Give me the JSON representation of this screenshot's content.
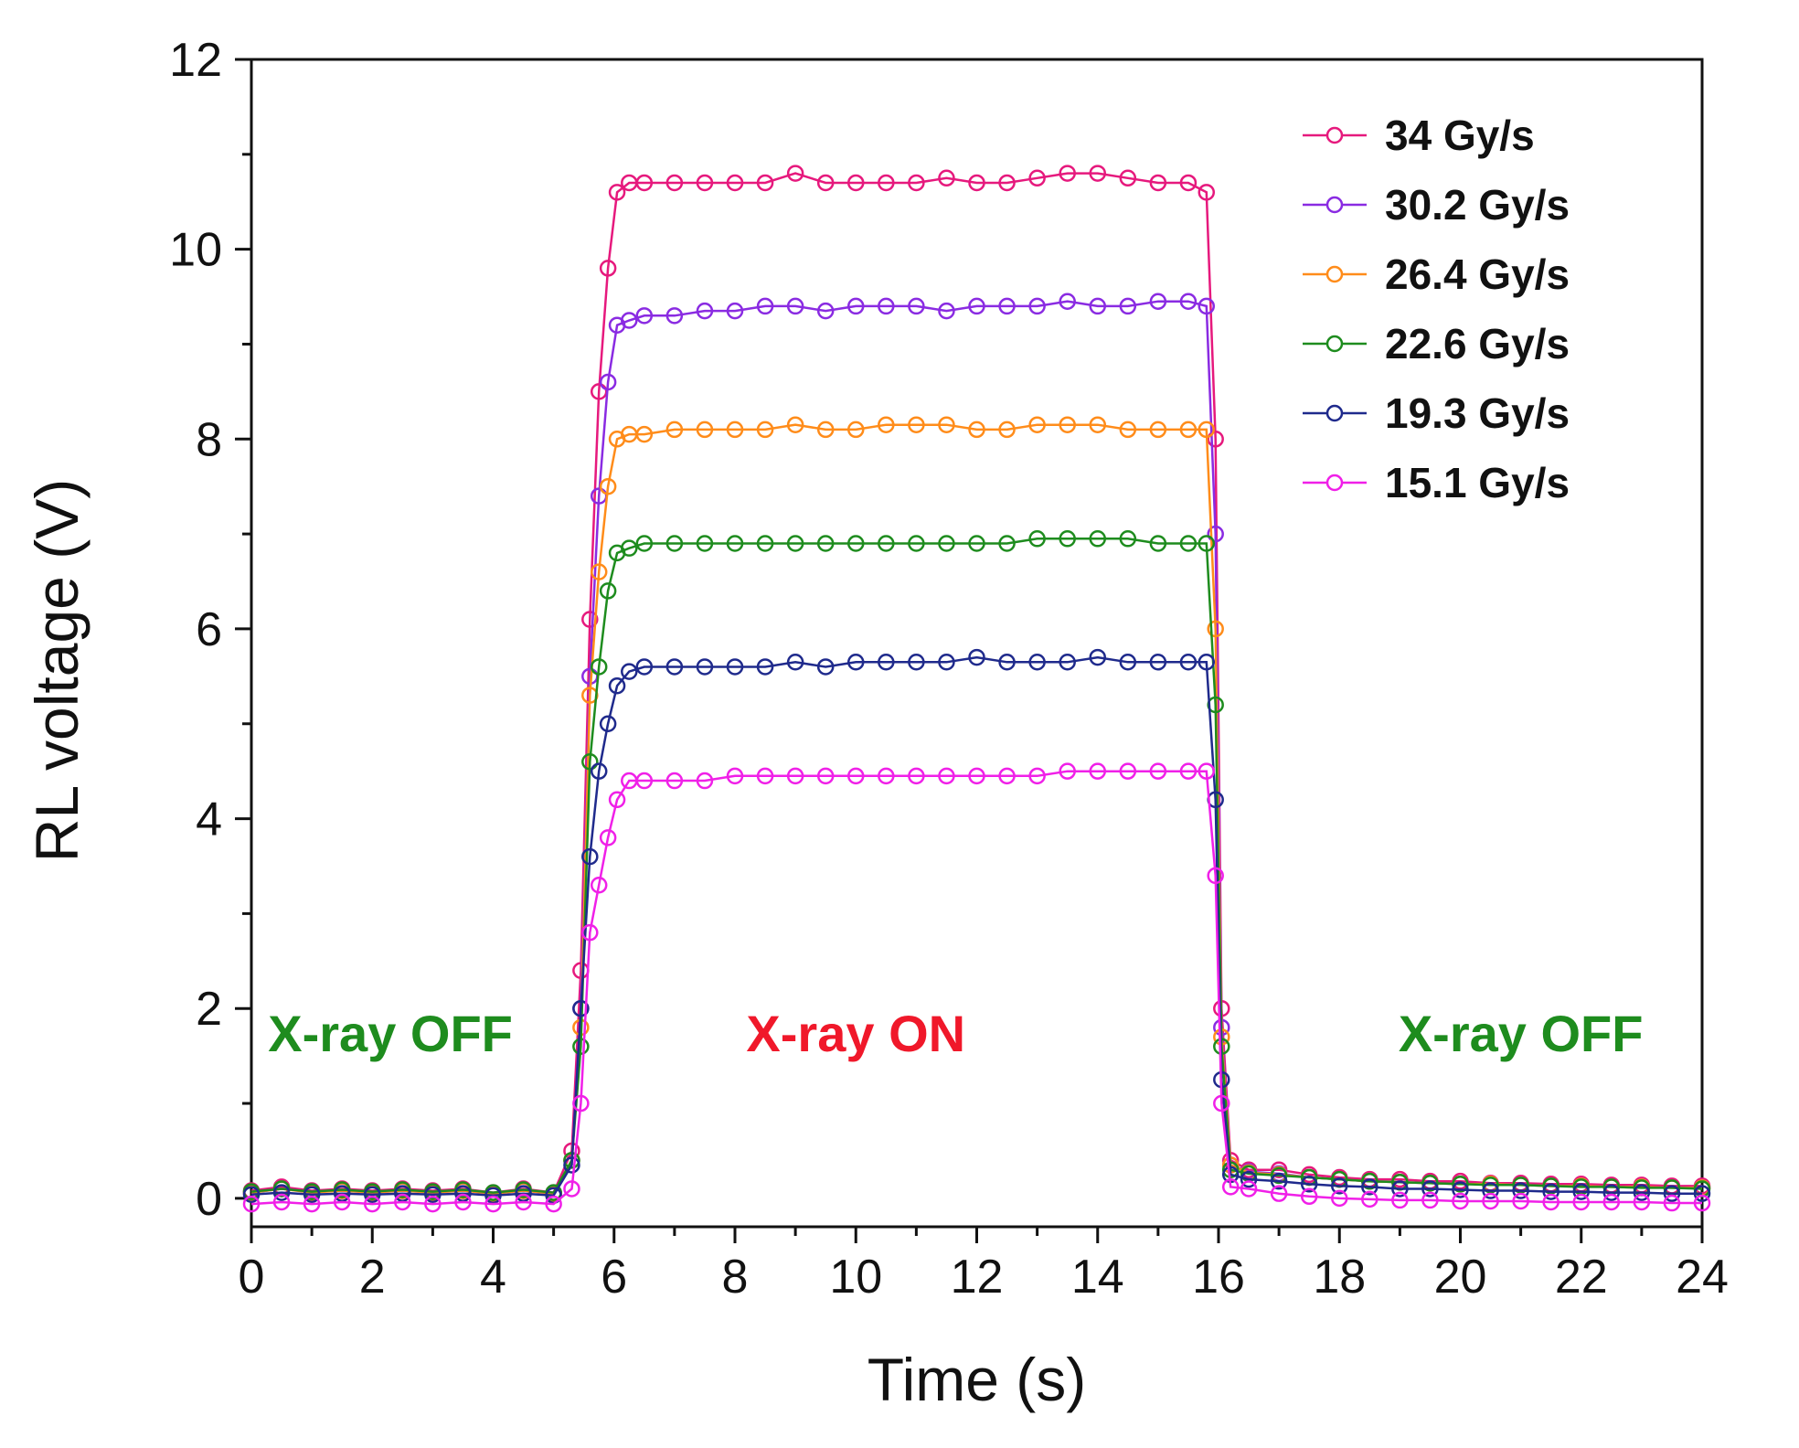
{
  "chart_data": {
    "type": "line",
    "xlabel": "Time (s)",
    "ylabel": "RL voltage (V)",
    "xlim": [
      0,
      24
    ],
    "ylim": [
      -0.3,
      12
    ],
    "xticks": [
      0,
      2,
      4,
      6,
      8,
      10,
      12,
      14,
      16,
      18,
      20,
      22,
      24
    ],
    "yticks": [
      0,
      2,
      4,
      6,
      8,
      10,
      12
    ],
    "marker": "open-circle",
    "legend_position": "top-right",
    "x": [
      0,
      0.5,
      1,
      1.5,
      2,
      2.5,
      3,
      3.5,
      4,
      4.5,
      5,
      5.3,
      5.45,
      5.6,
      5.75,
      5.9,
      6.05,
      6.25,
      6.5,
      7,
      7.5,
      8,
      8.5,
      9,
      9.5,
      10,
      10.5,
      11,
      11.5,
      12,
      12.5,
      13,
      13.5,
      14,
      14.5,
      15,
      15.5,
      15.8,
      15.95,
      16.05,
      16.2,
      16.5,
      17,
      17.5,
      18,
      18.5,
      19,
      19.5,
      20,
      20.5,
      21,
      21.5,
      22,
      22.5,
      23,
      23.5,
      24
    ],
    "series": [
      {
        "name": "34 Gy/s",
        "color": "#e6197d",
        "values": [
          0.08,
          0.12,
          0.08,
          0.1,
          0.08,
          0.1,
          0.08,
          0.1,
          0.06,
          0.1,
          0.06,
          0.5,
          2.4,
          6.1,
          8.5,
          9.8,
          10.6,
          10.7,
          10.7,
          10.7,
          10.7,
          10.7,
          10.7,
          10.8,
          10.7,
          10.7,
          10.7,
          10.7,
          10.75,
          10.7,
          10.7,
          10.75,
          10.8,
          10.8,
          10.75,
          10.7,
          10.7,
          10.6,
          8.0,
          2.0,
          0.4,
          0.3,
          0.3,
          0.25,
          0.22,
          0.2,
          0.2,
          0.18,
          0.18,
          0.16,
          0.16,
          0.15,
          0.15,
          0.14,
          0.14,
          0.13,
          0.13
        ]
      },
      {
        "name": "30.2 Gy/s",
        "color": "#8a2be2",
        "values": [
          0.06,
          0.1,
          0.07,
          0.08,
          0.06,
          0.08,
          0.06,
          0.08,
          0.05,
          0.08,
          0.05,
          0.4,
          2.0,
          5.5,
          7.4,
          8.6,
          9.2,
          9.25,
          9.3,
          9.3,
          9.35,
          9.35,
          9.4,
          9.4,
          9.35,
          9.4,
          9.4,
          9.4,
          9.35,
          9.4,
          9.4,
          9.4,
          9.45,
          9.4,
          9.4,
          9.45,
          9.45,
          9.4,
          7.0,
          1.8,
          0.35,
          0.28,
          0.26,
          0.22,
          0.2,
          0.18,
          0.17,
          0.16,
          0.15,
          0.15,
          0.14,
          0.13,
          0.13,
          0.12,
          0.12,
          0.11,
          0.11
        ]
      },
      {
        "name": "26.4 Gy/s",
        "color": "#ff8c1a",
        "values": [
          0.06,
          0.1,
          0.06,
          0.08,
          0.06,
          0.08,
          0.06,
          0.08,
          0.05,
          0.08,
          0.05,
          0.4,
          1.8,
          5.3,
          6.6,
          7.5,
          8.0,
          8.05,
          8.05,
          8.1,
          8.1,
          8.1,
          8.1,
          8.15,
          8.1,
          8.1,
          8.15,
          8.15,
          8.15,
          8.1,
          8.1,
          8.15,
          8.15,
          8.15,
          8.1,
          8.1,
          8.1,
          8.1,
          6.0,
          1.7,
          0.35,
          0.27,
          0.25,
          0.22,
          0.2,
          0.18,
          0.17,
          0.16,
          0.15,
          0.15,
          0.14,
          0.13,
          0.13,
          0.12,
          0.12,
          0.11,
          0.11
        ]
      },
      {
        "name": "22.6 Gy/s",
        "color": "#1e8c1e",
        "values": [
          0.07,
          0.1,
          0.07,
          0.09,
          0.07,
          0.09,
          0.07,
          0.09,
          0.06,
          0.09,
          0.06,
          0.4,
          1.6,
          4.6,
          5.6,
          6.4,
          6.8,
          6.85,
          6.9,
          6.9,
          6.9,
          6.9,
          6.9,
          6.9,
          6.9,
          6.9,
          6.9,
          6.9,
          6.9,
          6.9,
          6.9,
          6.95,
          6.95,
          6.95,
          6.95,
          6.9,
          6.9,
          6.9,
          5.2,
          1.6,
          0.3,
          0.26,
          0.24,
          0.22,
          0.2,
          0.18,
          0.17,
          0.16,
          0.15,
          0.14,
          0.14,
          0.13,
          0.12,
          0.12,
          0.11,
          0.11,
          0.1
        ]
      },
      {
        "name": "19.3 Gy/s",
        "color": "#1f2a8c",
        "values": [
          0.04,
          0.06,
          0.04,
          0.05,
          0.04,
          0.05,
          0.04,
          0.05,
          0.03,
          0.05,
          0.03,
          0.35,
          2.0,
          3.6,
          4.5,
          5.0,
          5.4,
          5.55,
          5.6,
          5.6,
          5.6,
          5.6,
          5.6,
          5.65,
          5.6,
          5.65,
          5.65,
          5.65,
          5.65,
          5.7,
          5.65,
          5.65,
          5.65,
          5.7,
          5.65,
          5.65,
          5.65,
          5.65,
          4.2,
          1.25,
          0.25,
          0.2,
          0.18,
          0.15,
          0.13,
          0.12,
          0.1,
          0.1,
          0.09,
          0.08,
          0.08,
          0.07,
          0.07,
          0.06,
          0.06,
          0.05,
          0.05
        ]
      },
      {
        "name": "15.1 Gy/s",
        "color": "#f020e8",
        "values": [
          -0.06,
          -0.04,
          -0.06,
          -0.04,
          -0.06,
          -0.04,
          -0.06,
          -0.04,
          -0.06,
          -0.04,
          -0.06,
          0.1,
          1.0,
          2.8,
          3.3,
          3.8,
          4.2,
          4.4,
          4.4,
          4.4,
          4.4,
          4.45,
          4.45,
          4.45,
          4.45,
          4.45,
          4.45,
          4.45,
          4.45,
          4.45,
          4.45,
          4.45,
          4.5,
          4.5,
          4.5,
          4.5,
          4.5,
          4.5,
          3.4,
          1.0,
          0.12,
          0.1,
          0.05,
          0.02,
          0.0,
          -0.01,
          -0.02,
          -0.02,
          -0.03,
          -0.03,
          -0.03,
          -0.04,
          -0.04,
          -0.04,
          -0.04,
          -0.05,
          -0.05
        ]
      }
    ],
    "annotations": [
      {
        "text": "X-ray OFF",
        "color": "#1e8c1e",
        "x": 2.3,
        "y": 1.55
      },
      {
        "text": "X-ray ON",
        "color": "#f0182a",
        "x": 10.0,
        "y": 1.55
      },
      {
        "text": "X-ray OFF",
        "color": "#1e8c1e",
        "x": 21.0,
        "y": 1.55
      }
    ]
  }
}
